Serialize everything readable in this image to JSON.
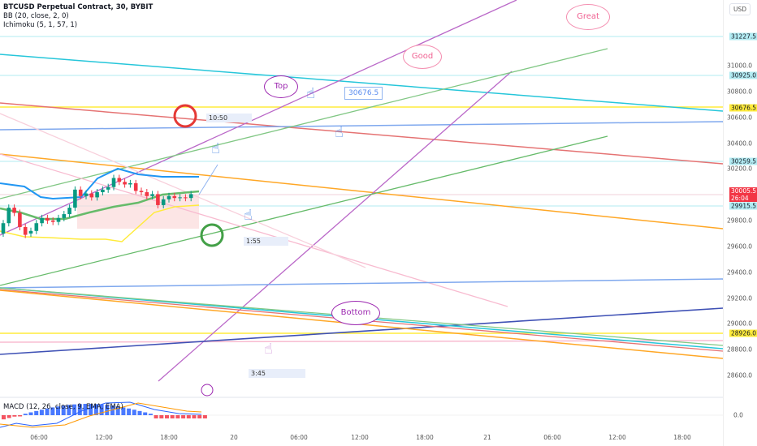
{
  "header": {
    "symbol": "BTCUSD Perpetual Contract, 30, BYBIT",
    "indicators": [
      "BB (20, close, 2, 0)",
      "Ichimoku (5, 1, 57, 1)"
    ]
  },
  "macd": {
    "label": "MACD (12, 26, close, 9, EMA, EMA)",
    "zero_label": "0.0"
  },
  "price_axis": {
    "currency": "USD",
    "ticks": [
      "31000.0",
      "30800.0",
      "30600.0",
      "30400.0",
      "30200.0",
      "29800.0",
      "29600.0",
      "29400.0",
      "29200.0",
      "29000.0",
      "28800.0",
      "28600.0"
    ],
    "badges": [
      {
        "value": "31227.5",
        "color": "#b2ebf2"
      },
      {
        "value": "30925.0",
        "color": "#b2ebf2"
      },
      {
        "value": "30676.5",
        "color": "#ffeb3b"
      },
      {
        "value": "30259.5",
        "color": "#b2ebf2"
      },
      {
        "value": "29915.5",
        "color": "#b2ebf2"
      },
      {
        "value": "28926.0",
        "color": "#ffeb3b"
      }
    ],
    "current": {
      "price": "30005.5",
      "countdown": "26:04",
      "color": "#f23645"
    }
  },
  "time_axis": [
    "06:00",
    "12:00",
    "18:00",
    "20",
    "06:00",
    "12:00",
    "18:00",
    "21",
    "06:00",
    "12:00",
    "18:00"
  ],
  "annotations": {
    "top": "Top",
    "good": "Good",
    "great": "Great",
    "bottom": "Bottom",
    "price_callout": "30676.5",
    "time1": "10:50",
    "time2": "1:55",
    "time3": "3:45"
  },
  "candles": [
    [
      29700,
      29780
    ],
    [
      29780,
      29900
    ],
    [
      29900,
      29860
    ],
    [
      29860,
      29750
    ],
    [
      29750,
      29690
    ],
    [
      29700,
      29720
    ],
    [
      29720,
      29780
    ],
    [
      29780,
      29820
    ],
    [
      29820,
      29800
    ],
    [
      29800,
      29790
    ],
    [
      29790,
      29820
    ],
    [
      29820,
      29850
    ],
    [
      29850,
      29900
    ],
    [
      29900,
      30040
    ],
    [
      30040,
      29990
    ],
    [
      29990,
      30010
    ],
    [
      30010,
      29980
    ],
    [
      29980,
      30020
    ],
    [
      30020,
      30040
    ],
    [
      30040,
      30060
    ],
    [
      30060,
      30130
    ],
    [
      30130,
      30100
    ],
    [
      30100,
      30080
    ],
    [
      30080,
      30090
    ],
    [
      30090,
      30030
    ],
    [
      30030,
      30020
    ],
    [
      30020,
      29990
    ],
    [
      29990,
      30005
    ],
    [
      30005,
      29920
    ],
    [
      29920,
      29965
    ],
    [
      29965,
      29990
    ],
    [
      29990,
      29975
    ],
    [
      29975,
      29980
    ],
    [
      29980,
      29975
    ],
    [
      29975,
      30005
    ]
  ],
  "colors": {
    "up": "#089981",
    "down": "#f23645"
  }
}
